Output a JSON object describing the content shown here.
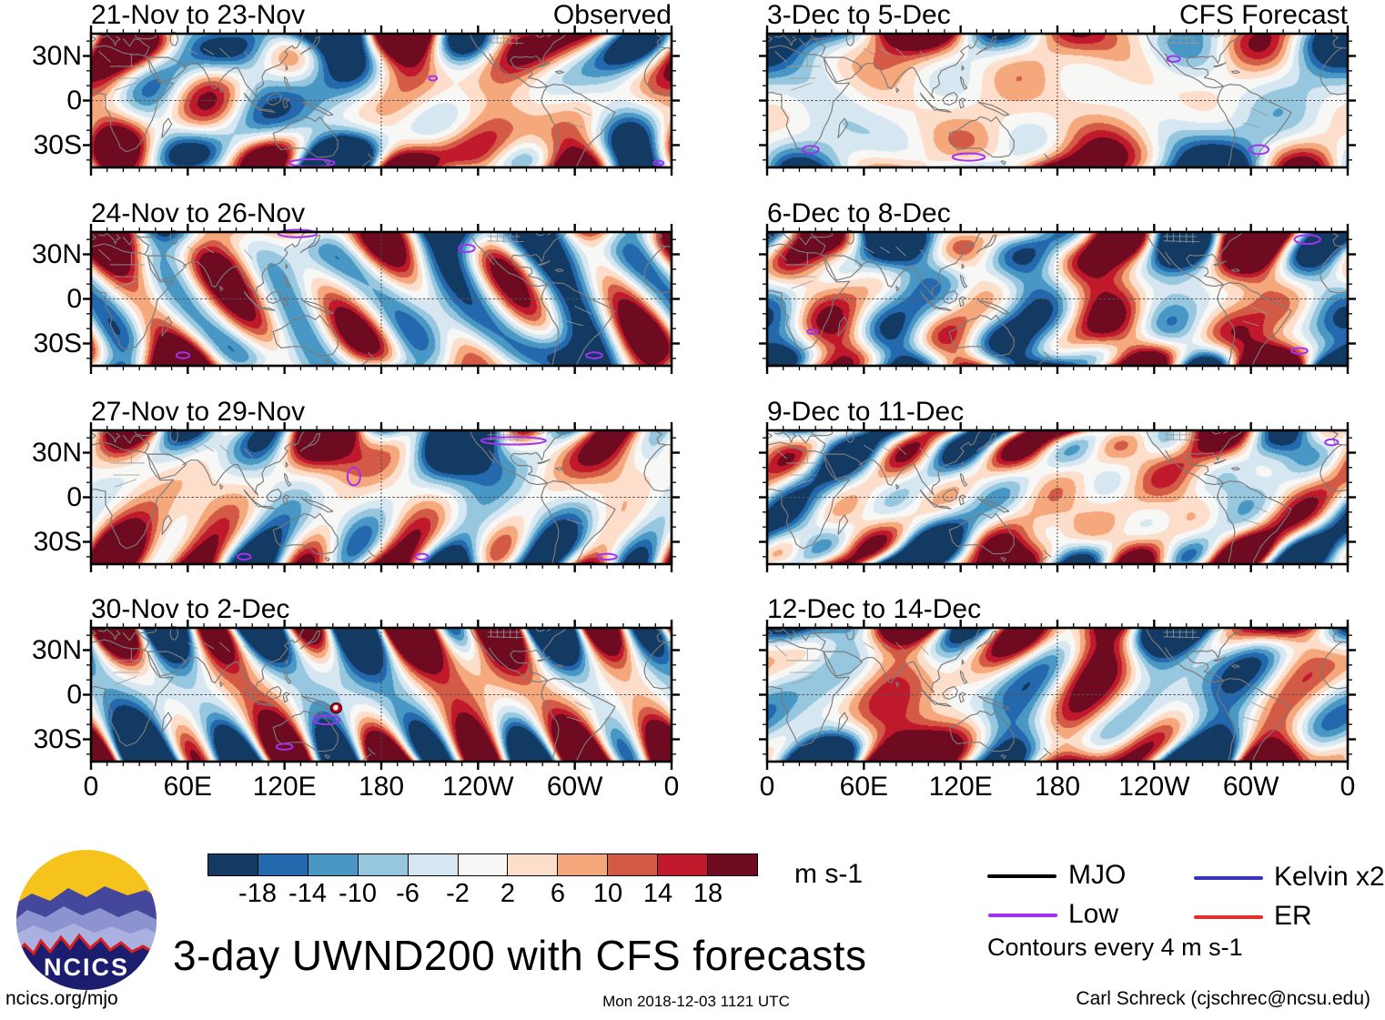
{
  "chart_data": {
    "type": "heatmap",
    "figure_title": "3-day UWND200 with CFS forecasts",
    "variable": "UWND200 anomaly maps, observed and CFS forecast",
    "units": "m s-1",
    "geo_extent": {
      "lon_range": [
        "0",
        "360"
      ],
      "lat_range": [
        "45S",
        "45N"
      ]
    },
    "x_axis": {
      "tick_labels": [
        "0",
        "60E",
        "120E",
        "180",
        "120W",
        "60W",
        "0"
      ]
    },
    "y_axis": {
      "tick_labels": [
        "30N",
        "0",
        "30S"
      ]
    },
    "colorbar": {
      "tick_values": [
        "-18",
        "-14",
        "-10",
        "-6",
        "-2",
        "2",
        "6",
        "10",
        "14",
        "18"
      ],
      "colors": [
        "#123a63",
        "#2468ad",
        "#4897c4",
        "#96c7df",
        "#d6e7f1",
        "#f7f7f5",
        "#fcdecb",
        "#f4a87c",
        "#d35b45",
        "#c0192c",
        "#6e0b20"
      ],
      "units_label": "m s-1"
    },
    "legend": {
      "items": [
        {
          "label": "MJO",
          "color": "#000000"
        },
        {
          "label": "Low",
          "color": "#a132f0"
        },
        {
          "label": "Kelvin x2",
          "color": "#3232cc"
        },
        {
          "label": "ER",
          "color": "#e62e2e"
        }
      ],
      "note": "Contours every 4 m s-1"
    },
    "panels": [
      {
        "title": "21-Nov to 23-Nov",
        "column": "observed",
        "column_label": "Observed",
        "low_contours": [
          [
            137,
            -42,
            14,
            2.5
          ],
          [
            212,
            15,
            2.5,
            1.5
          ],
          [
            352,
            -42,
            3,
            1.5
          ]
        ]
      },
      {
        "title": "24-Nov to 26-Nov",
        "column": "observed",
        "low_contours": [
          [
            128,
            44,
            12,
            2.5
          ],
          [
            233,
            34,
            5,
            2.5
          ],
          [
            57,
            -38,
            4,
            2
          ],
          [
            312,
            -38,
            5,
            2
          ]
        ]
      },
      {
        "title": "27-Nov to 29-Nov",
        "column": "observed",
        "low_contours": [
          [
            262,
            38,
            20,
            2.5
          ],
          [
            163,
            14,
            4,
            6
          ],
          [
            95,
            -40,
            4,
            2
          ],
          [
            205,
            -40,
            4,
            2
          ],
          [
            320,
            -40,
            6,
            2
          ]
        ]
      },
      {
        "title": "30-Nov to 2-Dec",
        "column": "observed",
        "low_contours": [
          [
            146,
            -17,
            8,
            3
          ],
          [
            120,
            -35,
            5,
            2
          ]
        ],
        "cyclone_marker": {
          "lon": 152,
          "lat": -9
        }
      },
      {
        "title": "3-Dec to 5-Dec",
        "column": "forecast",
        "column_label": "CFS Forecast",
        "low_contours": [
          [
            27,
            -33,
            5,
            2.5
          ],
          [
            125,
            -38,
            10,
            2.5
          ],
          [
            305,
            -33,
            6,
            3
          ],
          [
            252,
            28,
            4,
            2
          ]
        ]
      },
      {
        "title": "6-Dec to 8-Dec",
        "column": "forecast",
        "low_contours": [
          [
            335,
            40,
            8,
            3
          ],
          [
            28,
            -22,
            3,
            1.5
          ],
          [
            330,
            -35,
            5,
            2
          ]
        ]
      },
      {
        "title": "9-Dec to 11-Dec",
        "column": "forecast",
        "low_contours": [
          [
            350,
            37,
            4,
            2
          ]
        ]
      },
      {
        "title": "12-Dec to 14-Dec",
        "column": "forecast",
        "low_contours": []
      }
    ]
  },
  "branding": {
    "logo_text": "NCICS"
  },
  "footer": {
    "left": "ncics.org/mjo",
    "center": "Mon 2018-12-03 1121 UTC",
    "right": "Carl Schreck (cjschrec@ncsu.edu)"
  }
}
